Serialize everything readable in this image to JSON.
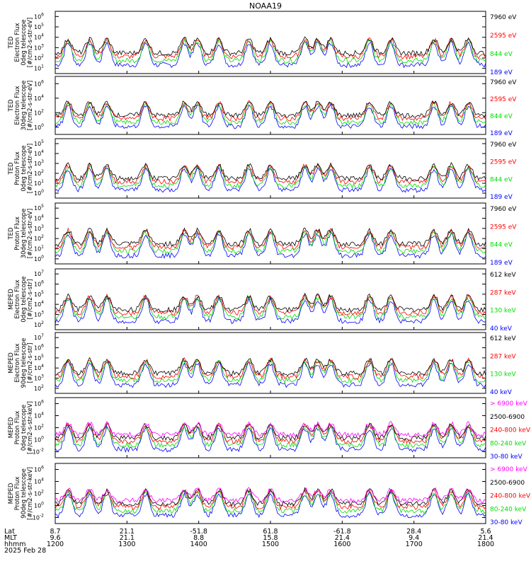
{
  "title": "NOAA19",
  "colors": {
    "black": "#000000",
    "red": "#ff0000",
    "green": "#00dd00",
    "blue": "#0000ff",
    "magenta": "#ff00ff"
  },
  "chart_data": [
    {
      "type": "line",
      "instrument": "TED",
      "ylabel": [
        "TED",
        "Electron Flux",
        "0deg telescope",
        "[#/cm2-s-str-eV]"
      ],
      "yticks": [
        "10^1",
        "10^2",
        "10^3",
        "10^4",
        "10^5",
        "10^6"
      ],
      "series": [
        {
          "name": "7960 eV",
          "color": "#000000"
        },
        {
          "name": "2595 eV",
          "color": "#ff0000"
        },
        {
          "name": "844 eV",
          "color": "#00dd00"
        },
        {
          "name": "189 eV",
          "color": "#0000ff"
        }
      ]
    },
    {
      "type": "line",
      "instrument": "TED",
      "ylabel": [
        "TED",
        "Electron Flux",
        "30deg telescope",
        "[#/cm2-s-str-eV]"
      ],
      "yticks": [
        "10^0",
        "10^2",
        "10^4",
        "10^6"
      ],
      "series": [
        {
          "name": "7960 eV",
          "color": "#000000"
        },
        {
          "name": "2595 eV",
          "color": "#ff0000"
        },
        {
          "name": "844 eV",
          "color": "#00dd00"
        },
        {
          "name": "189 eV",
          "color": "#0000ff"
        }
      ]
    },
    {
      "type": "line",
      "instrument": "TED",
      "ylabel": [
        "TED",
        "Proton Flux",
        "0deg telescope",
        "[#/cm2-s-str-eV]"
      ],
      "yticks": [
        "10^0",
        "10^1",
        "10^2",
        "10^3",
        "10^4",
        "10^5"
      ],
      "series": [
        {
          "name": "7960 eV",
          "color": "#000000"
        },
        {
          "name": "2595 eV",
          "color": "#ff0000"
        },
        {
          "name": "844 eV",
          "color": "#00dd00"
        },
        {
          "name": "189 eV",
          "color": "#0000ff"
        }
      ]
    },
    {
      "type": "line",
      "instrument": "TED",
      "ylabel": [
        "TED",
        "Proton Flux",
        "30deg telescope",
        "[#/cm2-s-str-eV]"
      ],
      "yticks": [
        "10^0",
        "10^1",
        "10^2",
        "10^3",
        "10^4",
        "10^5"
      ],
      "series": [
        {
          "name": "7960 eV",
          "color": "#000000"
        },
        {
          "name": "2595 eV",
          "color": "#ff0000"
        },
        {
          "name": "844 eV",
          "color": "#00dd00"
        },
        {
          "name": "189 eV",
          "color": "#0000ff"
        }
      ]
    },
    {
      "type": "line",
      "instrument": "MEPED",
      "ylabel": [
        "MEPED",
        "Electron Flux",
        "0deg telescope",
        "[#/cm2-s-str]"
      ],
      "yticks": [
        "10^2",
        "10^3",
        "10^4",
        "10^5",
        "10^6",
        "10^7"
      ],
      "series": [
        {
          "name": "612 keV",
          "color": "#000000"
        },
        {
          "name": "287 keV",
          "color": "#ff0000"
        },
        {
          "name": "130 keV",
          "color": "#00dd00"
        },
        {
          "name": "40 keV",
          "color": "#0000ff"
        }
      ]
    },
    {
      "type": "line",
      "instrument": "MEPED",
      "ylabel": [
        "MEPED",
        "Electron Flux",
        "90deg telescope",
        "[#/cm2-s-str]"
      ],
      "yticks": [
        "10^2",
        "10^3",
        "10^4",
        "10^5",
        "10^6",
        "10^7"
      ],
      "series": [
        {
          "name": "612 keV",
          "color": "#000000"
        },
        {
          "name": "287 keV",
          "color": "#ff0000"
        },
        {
          "name": "130 keV",
          "color": "#00dd00"
        },
        {
          "name": "40 keV",
          "color": "#0000ff"
        }
      ]
    },
    {
      "type": "line",
      "instrument": "MEPED",
      "ylabel": [
        "MEPED",
        "Proton Flux",
        "0deg telescope",
        "[#/cm2-s-str-keV]"
      ],
      "yticks": [
        "10^-2",
        "10^0",
        "10^2",
        "10^4",
        "10^6"
      ],
      "series": [
        {
          "name": "> 6900 keV",
          "color": "#ff00ff"
        },
        {
          "name": "2500-6900",
          "color": "#000000"
        },
        {
          "name": "240-800 keV",
          "color": "#ff0000"
        },
        {
          "name": "80-240 keV",
          "color": "#00dd00"
        },
        {
          "name": "30-80 keV",
          "color": "#0000ff"
        }
      ]
    },
    {
      "type": "line",
      "instrument": "MEPED",
      "ylabel": [
        "MEPED",
        "Proton Flux",
        "90deg telescope",
        "[#/cm2-s-str-keV]"
      ],
      "yticks": [
        "10^-2",
        "10^0",
        "10^2",
        "10^4",
        "10^6"
      ],
      "series": [
        {
          "name": "> 6900 keV",
          "color": "#ff00ff"
        },
        {
          "name": "2500-6900",
          "color": "#000000"
        },
        {
          "name": "240-800 keV",
          "color": "#ff0000"
        },
        {
          "name": "80-240 keV",
          "color": "#00dd00"
        },
        {
          "name": "30-80 keV",
          "color": "#0000ff"
        }
      ]
    }
  ],
  "x_axis": {
    "row_labels": [
      "Lat",
      "MLT",
      "hhmm",
      "2025 Feb 28"
    ],
    "ticks": [
      {
        "lat": "8.7",
        "mlt": "9.6",
        "hhmm": "1200"
      },
      {
        "lat": "21.1",
        "mlt": "21.1",
        "hhmm": "1300"
      },
      {
        "lat": "-51.8",
        "mlt": "8.8",
        "hhmm": "1400"
      },
      {
        "lat": "61.8",
        "mlt": "15.8",
        "hhmm": "1500"
      },
      {
        "lat": "-61.8",
        "mlt": "21.4",
        "hhmm": "1600"
      },
      {
        "lat": "28.4",
        "mlt": "9.4",
        "hhmm": "1700"
      },
      {
        "lat": "5.6",
        "mlt": "21.4",
        "hhmm": "1800"
      }
    ]
  }
}
